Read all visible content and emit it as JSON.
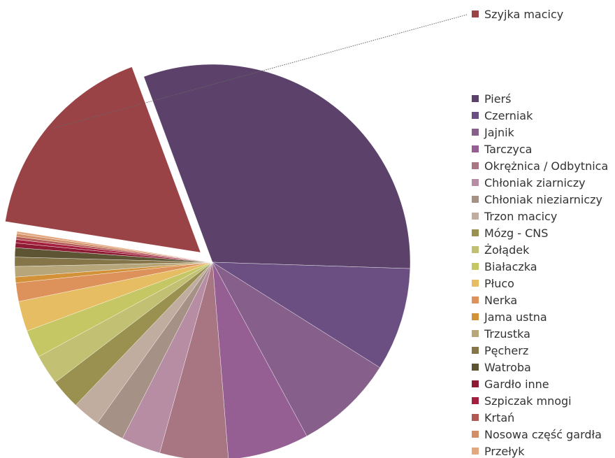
{
  "chart_data": {
    "type": "pie",
    "title": "",
    "legend_position": "right",
    "callout_series": "Szyjka macicy",
    "slices": [
      {
        "name": "Szyjka macicy",
        "value": 17.8,
        "color": "#9a4346",
        "exploded": true
      },
      {
        "name": "Pierś",
        "value": 32.9,
        "color": "#5c416a"
      },
      {
        "name": "Czerniak",
        "value": 8.9,
        "color": "#6c4f82"
      },
      {
        "name": "Jajnik",
        "value": 8.6,
        "color": "#86608a"
      },
      {
        "name": "Tarczyca",
        "value": 7.0,
        "color": "#965f93"
      },
      {
        "name": "Okrężnica / Odbytnica",
        "value": 5.9,
        "color": "#a87682"
      },
      {
        "name": "Chłoniak ziarniczy",
        "value": 3.4,
        "color": "#b68da2"
      },
      {
        "name": "Chłoniak nieziarniczy",
        "value": 2.5,
        "color": "#a69186"
      },
      {
        "name": "Trzon macicy",
        "value": 2.4,
        "color": "#c0ada0"
      },
      {
        "name": "Mózg - CNS",
        "value": 2.6,
        "color": "#9a9150"
      },
      {
        "name": "Żołądek",
        "value": 2.6,
        "color": "#c2c073"
      },
      {
        "name": "Białaczka",
        "value": 2.4,
        "color": "#c4c763"
      },
      {
        "name": "Płuco",
        "value": 2.6,
        "color": "#e6bd62"
      },
      {
        "name": "Nerka",
        "value": 1.6,
        "color": "#dc925a"
      },
      {
        "name": "Jama ustna",
        "value": 0.5,
        "color": "#d39237"
      },
      {
        "name": "Trzustka",
        "value": 0.9,
        "color": "#b6a67a"
      },
      {
        "name": "Pęcherz",
        "value": 0.8,
        "color": "#857548"
      },
      {
        "name": "Watroba",
        "value": 0.8,
        "color": "#5c5433"
      },
      {
        "name": "Gardło inne",
        "value": 0.4,
        "color": "#8c1b33"
      },
      {
        "name": "Szpiczak mnogi",
        "value": 0.3,
        "color": "#a41f3d"
      },
      {
        "name": "Krtań",
        "value": 0.25,
        "color": "#b35955"
      },
      {
        "name": "Nosowa część gardła",
        "value": 0.25,
        "color": "#d18e67"
      },
      {
        "name": "Przełyk",
        "value": 0.2,
        "color": "#e4a880"
      }
    ],
    "legend_order": [
      "Pierś",
      "Czerniak",
      "Jajnik",
      "Tarczyca",
      "Okrężnica / Odbytnica",
      "Chłoniak ziarniczy",
      "Chłoniak nieziarniczy",
      "Trzon macicy",
      "Mózg - CNS",
      "Żołądek",
      "Białaczka",
      "Płuco",
      "Nerka",
      "Jama ustna",
      "Trzustka",
      "Pęcherz",
      "Watroba",
      "Gardło inne",
      "Szpiczak mnogi",
      "Krtań",
      "Nosowa część gardła",
      "Przełyk"
    ]
  }
}
